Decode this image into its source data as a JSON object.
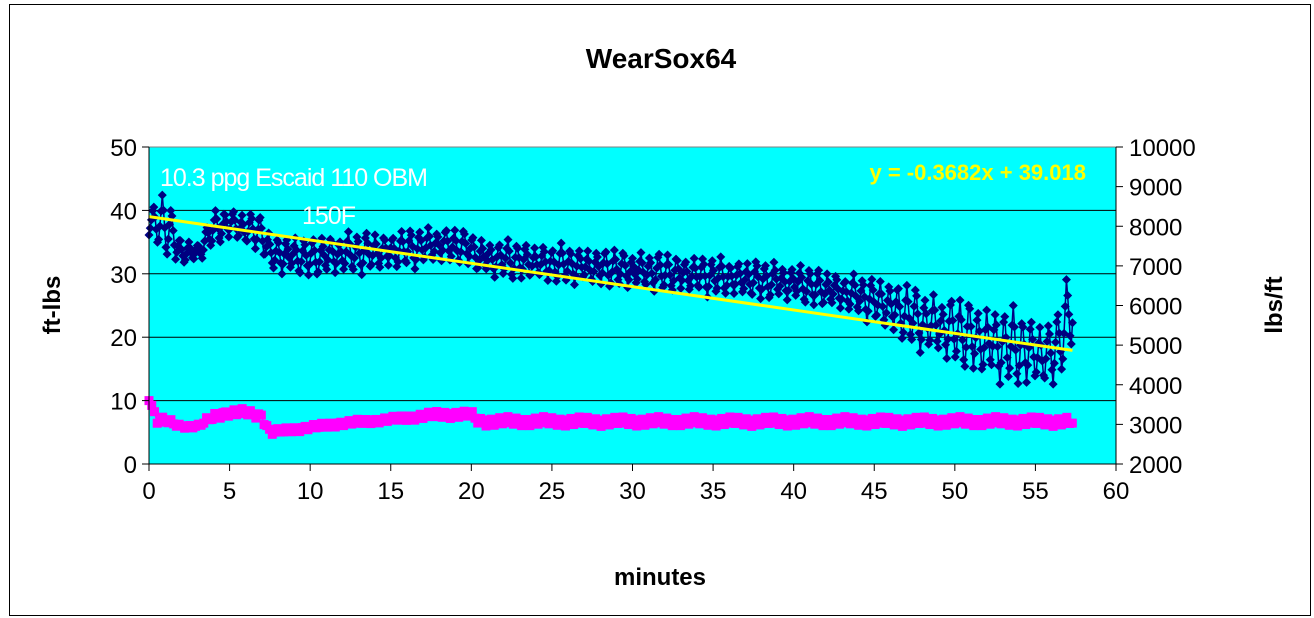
{
  "chart_data": {
    "type": "scatter",
    "title": "WearSox64",
    "xlabel": "minutes",
    "ylabel_left": "ft-lbs",
    "ylabel_right": "lbs/ft",
    "xlim": [
      0,
      60
    ],
    "ylim_left": [
      0,
      50
    ],
    "ylim_right": [
      2000,
      10000
    ],
    "x_ticks": [
      "0",
      "5",
      "10",
      "15",
      "20",
      "25",
      "30",
      "35",
      "40",
      "45",
      "50",
      "55",
      "60"
    ],
    "y_left_ticks": [
      "0",
      "10",
      "20",
      "30",
      "40",
      "50"
    ],
    "y_right_ticks": [
      "2000",
      "3000",
      "4000",
      "5000",
      "6000",
      "7000",
      "8000",
      "9000",
      "10000"
    ],
    "grid": "horizontal",
    "plot_background": "#00ffff",
    "annotations": {
      "fluid": "10.3 ppg Escaid 110 OBM",
      "temperature": "150F",
      "trendline_equation": "y = -0.3682x + 39.018"
    },
    "trendline": {
      "slope": -0.3682,
      "intercept": 39.018,
      "x_range": [
        0,
        57.3
      ],
      "color": "#ffff00"
    },
    "series": [
      {
        "axis": "left",
        "color": "#000080",
        "marker": "diamond",
        "envelope_x": [
          0,
          1,
          2,
          3,
          4,
          5,
          6,
          7,
          7.5,
          8,
          10,
          12,
          15,
          18,
          20,
          20.5,
          25,
          30,
          35,
          40,
          44,
          46,
          48,
          50,
          52,
          54,
          56,
          57.3
        ],
        "envelope_high": [
          40,
          44,
          36,
          35,
          40,
          41,
          40,
          40,
          36,
          37,
          36,
          37,
          37,
          38,
          37,
          36,
          35,
          34,
          33,
          32,
          30,
          30,
          28,
          27,
          26,
          25,
          23,
          32
        ],
        "envelope_low": [
          35,
          30,
          30,
          31,
          33,
          34,
          33,
          32,
          29,
          28,
          28,
          28,
          29,
          30,
          30,
          28,
          27,
          26,
          25,
          24,
          22,
          18,
          15,
          13,
          10,
          9,
          9,
          14
        ]
      },
      {
        "axis": "right",
        "color": "#ff00ff",
        "marker": "square",
        "envelope_x": [
          0,
          0.5,
          1,
          2,
          3,
          4,
          5,
          6,
          7,
          7.5,
          8,
          10,
          12,
          15,
          18,
          20,
          20.5,
          30,
          40,
          50,
          57.3
        ],
        "envelope_high": [
          3700,
          3200,
          3200,
          3000,
          3000,
          3300,
          3400,
          3400,
          3300,
          2900,
          2900,
          3000,
          3100,
          3200,
          3350,
          3350,
          3200,
          3200,
          3200,
          3200,
          3200
        ],
        "envelope_low": [
          3600,
          3000,
          3000,
          2900,
          2900,
          3100,
          3200,
          3200,
          3100,
          2700,
          2750,
          2850,
          2950,
          3050,
          3150,
          3150,
          2950,
          2950,
          2950,
          2950,
          2950
        ]
      }
    ]
  }
}
